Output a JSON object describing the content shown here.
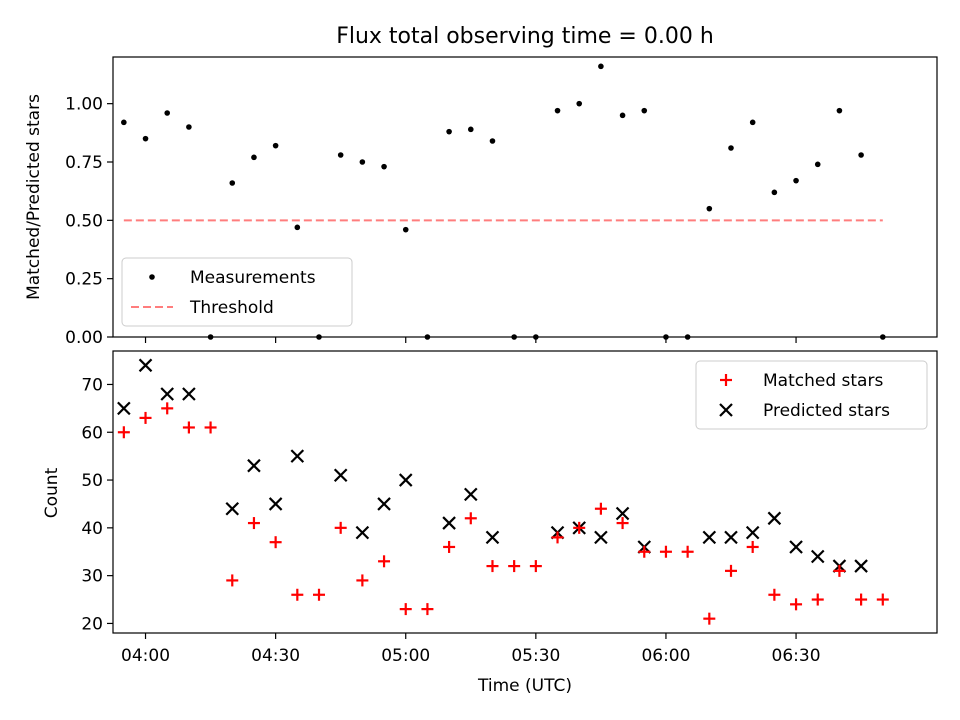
{
  "chart_data": [
    {
      "type": "scatter",
      "title": "Flux total observing time = 0.00 h",
      "xlabel": "",
      "ylabel": "Matched/Predicted stars",
      "ylim": [
        0,
        1.2
      ],
      "yticks": [
        "0.00",
        "0.25",
        "0.50",
        "0.75",
        "1.00"
      ],
      "legend_position": "lower-left",
      "series": [
        {
          "name": "Measurements",
          "color": "#000000",
          "marker": "dot",
          "x": [
            "03:55",
            "04:00",
            "04:05",
            "04:10",
            "04:15",
            "04:20",
            "04:25",
            "04:30",
            "04:35",
            "04:40",
            "04:45",
            "04:50",
            "04:55",
            "05:00",
            "05:05",
            "05:10",
            "05:15",
            "05:20",
            "05:25",
            "05:30",
            "05:35",
            "05:40",
            "05:45",
            "05:50",
            "05:55",
            "06:00",
            "06:05",
            "06:10",
            "06:15",
            "06:20",
            "06:25",
            "06:30",
            "06:35",
            "06:40",
            "06:45",
            "06:50"
          ],
          "values": [
            0.92,
            0.85,
            0.96,
            0.9,
            0.0,
            0.66,
            0.77,
            0.82,
            0.47,
            0.0,
            0.78,
            0.75,
            0.73,
            0.46,
            0.0,
            0.88,
            0.89,
            0.84,
            0.0,
            0.0,
            0.97,
            1.0,
            1.16,
            0.95,
            0.97,
            0.0,
            0.0,
            0.55,
            0.81,
            0.92,
            0.62,
            0.67,
            0.74,
            0.97,
            0.78,
            0.0
          ]
        },
        {
          "name": "Threshold",
          "color": "#ff6666",
          "style": "dashed",
          "x": [
            "03:55",
            "06:50"
          ],
          "values": [
            0.5,
            0.5
          ]
        }
      ]
    },
    {
      "type": "scatter",
      "title": "",
      "xlabel": "Time (UTC)",
      "ylabel": "Count",
      "ylim": [
        18,
        77
      ],
      "yticks": [
        "20",
        "30",
        "40",
        "50",
        "60",
        "70"
      ],
      "xticks": [
        "04:00",
        "04:30",
        "05:00",
        "05:30",
        "06:00",
        "06:30"
      ],
      "legend_position": "top-right",
      "series": [
        {
          "name": "Matched stars",
          "color": "#ff0000",
          "marker": "plus",
          "x": [
            "03:55",
            "04:00",
            "04:05",
            "04:10",
            "04:15",
            "04:20",
            "04:25",
            "04:30",
            "04:35",
            "04:40",
            "04:45",
            "04:50",
            "04:55",
            "05:00",
            "05:05",
            "05:10",
            "05:15",
            "05:20",
            "05:25",
            "05:30",
            "05:35",
            "05:40",
            "05:45",
            "05:50",
            "05:55",
            "06:00",
            "06:05",
            "06:10",
            "06:15",
            "06:20",
            "06:25",
            "06:30",
            "06:35",
            "06:40",
            "06:45",
            "06:50"
          ],
          "values": [
            60,
            63,
            65,
            61,
            61,
            29,
            41,
            37,
            26,
            26,
            40,
            29,
            33,
            23,
            23,
            36,
            42,
            32,
            32,
            32,
            38,
            40,
            44,
            41,
            35,
            35,
            35,
            21,
            31,
            36,
            26,
            24,
            25,
            31,
            25,
            25
          ]
        },
        {
          "name": "Predicted stars",
          "color": "#000000",
          "marker": "x",
          "x": [
            "03:55",
            "04:00",
            "04:05",
            "04:10",
            "04:20",
            "04:25",
            "04:30",
            "04:35",
            "04:45",
            "04:50",
            "04:55",
            "05:00",
            "05:10",
            "05:15",
            "05:20",
            "05:35",
            "05:40",
            "05:45",
            "05:50",
            "05:55",
            "06:10",
            "06:15",
            "06:20",
            "06:25",
            "06:30",
            "06:35",
            "06:40",
            "06:45"
          ],
          "values": [
            65,
            74,
            68,
            68,
            44,
            53,
            45,
            55,
            51,
            39,
            45,
            50,
            41,
            47,
            38,
            39,
            40,
            38,
            43,
            36,
            38,
            38,
            39,
            42,
            36,
            34,
            32,
            32
          ]
        }
      ]
    }
  ]
}
